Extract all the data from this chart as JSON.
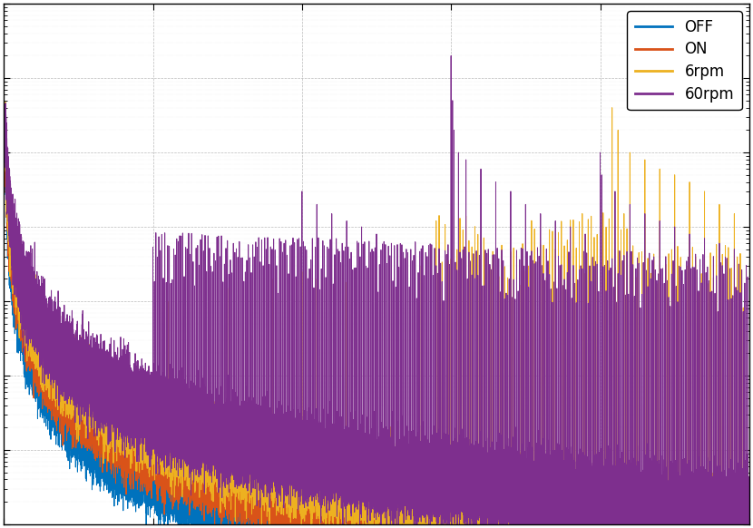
{
  "title": "",
  "xlabel": "",
  "ylabel": "",
  "xlim": [
    0,
    500
  ],
  "legend_labels": [
    "OFF",
    "ON",
    "6rpm",
    "60rpm"
  ],
  "legend_colors": [
    "#0072BD",
    "#D95319",
    "#EDB120",
    "#7E2F8E"
  ],
  "background_color": "#ffffff",
  "fig_width": 8.3,
  "fig_height": 5.82,
  "dpi": 100,
  "fs": 1000,
  "n_samples": 100000,
  "seed": 1
}
